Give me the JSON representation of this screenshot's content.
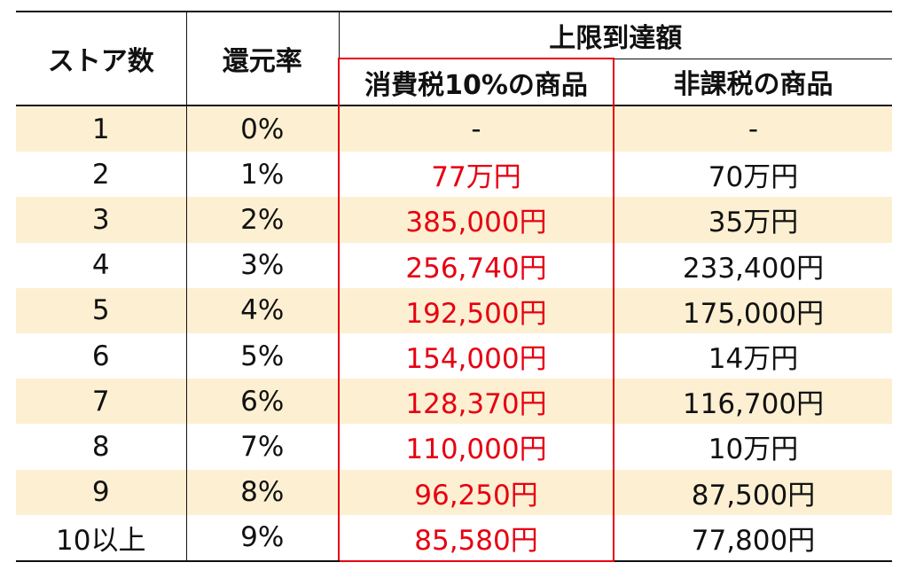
{
  "table": {
    "headers": {
      "stores": "ストア数",
      "rate": "還元率",
      "limit": "上限到達額",
      "taxed": "消費税10%の商品",
      "untaxed": "非課税の商品"
    },
    "rows": [
      {
        "stores": "1",
        "rate": "0%",
        "taxed": "-",
        "untaxed": "-"
      },
      {
        "stores": "2",
        "rate": "1%",
        "taxed": "77万円",
        "untaxed": "70万円"
      },
      {
        "stores": "3",
        "rate": "2%",
        "taxed": "385,000円",
        "untaxed": "35万円"
      },
      {
        "stores": "4",
        "rate": "3%",
        "taxed": "256,740円",
        "untaxed": "233,400円"
      },
      {
        "stores": "5",
        "rate": "4%",
        "taxed": "192,500円",
        "untaxed": "175,000円"
      },
      {
        "stores": "6",
        "rate": "5%",
        "taxed": "154,000円",
        "untaxed": "14万円"
      },
      {
        "stores": "7",
        "rate": "6%",
        "taxed": "128,370円",
        "untaxed": "116,700円"
      },
      {
        "stores": "8",
        "rate": "7%",
        "taxed": "110,000円",
        "untaxed": "10万円"
      },
      {
        "stores": "9",
        "rate": "8%",
        "taxed": "96,250円",
        "untaxed": "87,500円"
      },
      {
        "stores": "10以上",
        "rate": "9%",
        "taxed": "85,580円",
        "untaxed": "77,800円"
      }
    ],
    "colors": {
      "highlight_text": "#e60012",
      "highlight_border": "#e60012",
      "stripe_background": "#fdf0d2"
    }
  }
}
